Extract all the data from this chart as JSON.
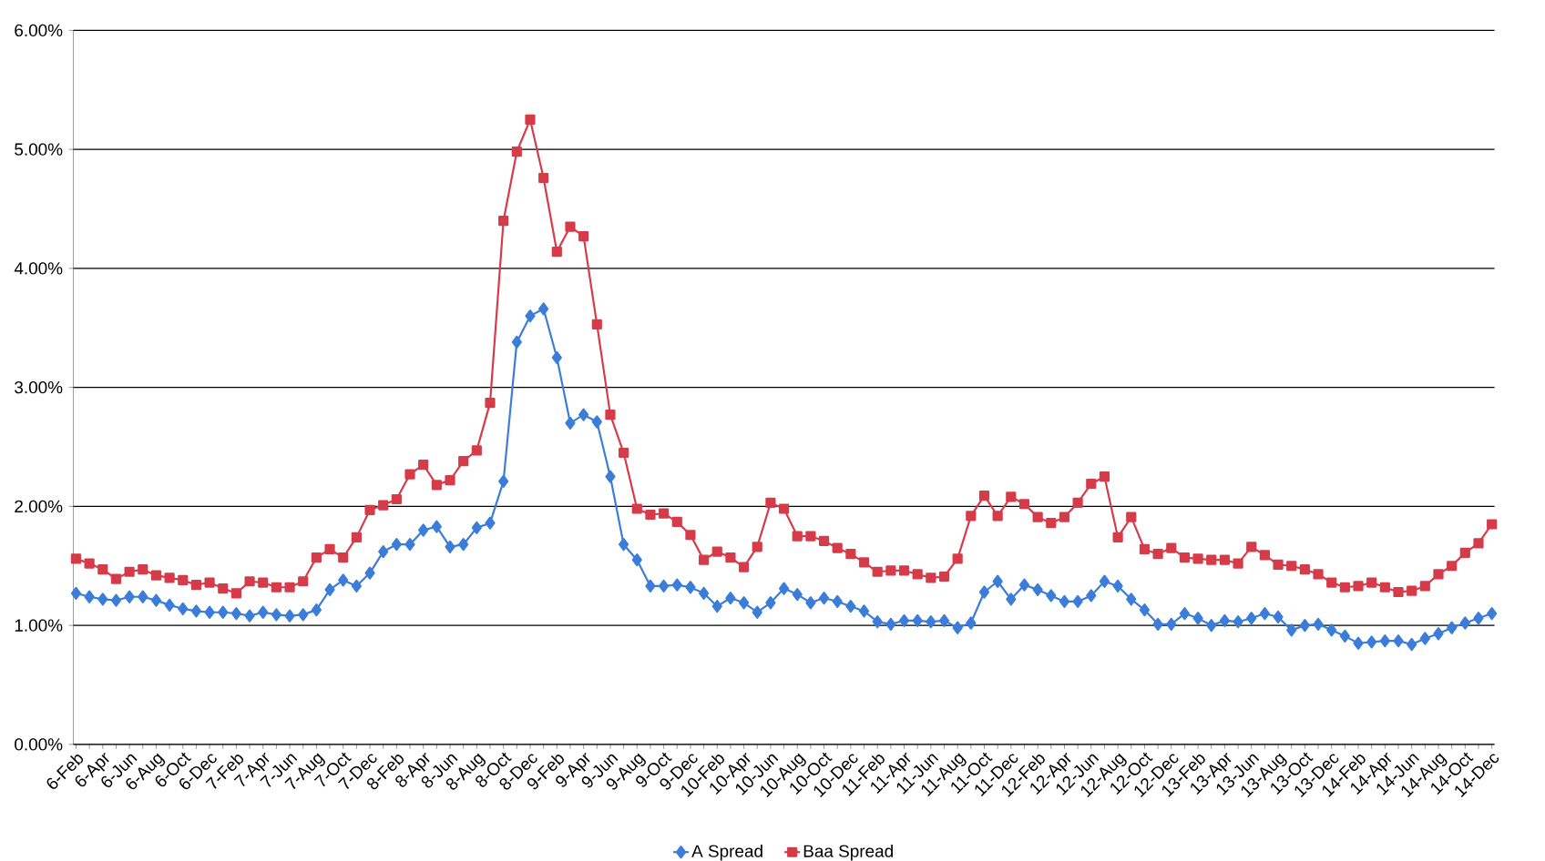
{
  "chart_data": {
    "type": "line",
    "categories": [
      "6-Feb",
      null,
      "6-Apr",
      null,
      "6-Jun",
      null,
      "6-Aug",
      null,
      "6-Oct",
      null,
      "6-Dec",
      null,
      "7-Feb",
      null,
      "7-Apr",
      null,
      "7-Jun",
      null,
      "7-Aug",
      null,
      "7-Oct",
      null,
      "7-Dec",
      null,
      "8-Feb",
      null,
      "8-Apr",
      null,
      "8-Jun",
      null,
      "8-Aug",
      null,
      "8-Oct",
      null,
      "8-Dec",
      null,
      "9-Feb",
      null,
      "9-Apr",
      null,
      "9-Jun",
      null,
      "9-Aug",
      null,
      "9-Oct",
      null,
      "9-Dec",
      null,
      "10-Feb",
      null,
      "10-Apr",
      null,
      "10-Jun",
      null,
      "10-Aug",
      null,
      "10-Oct",
      null,
      "10-Dec",
      null,
      "11-Feb",
      null,
      "11-Apr",
      null,
      "11-Jun",
      null,
      "11-Aug",
      null,
      "11-Oct",
      null,
      "11-Dec",
      null,
      "12-Feb",
      null,
      "12-Apr",
      null,
      "12-Jun",
      null,
      "12-Aug",
      null,
      "12-Oct",
      null,
      "12-Dec",
      null,
      "13-Feb",
      null,
      "13-Apr",
      null,
      "13-Jun",
      null,
      "13-Aug",
      null,
      "13-Oct",
      null,
      "13-Dec",
      null,
      "14-Feb",
      null,
      "14-Apr",
      null,
      "14-Jun",
      null,
      "14-Aug",
      null,
      "14-Oct",
      null,
      "14-Dec"
    ],
    "series": [
      {
        "name": "A Spread",
        "color": "#3b7dd8",
        "marker": "diamond",
        "values": [
          1.27,
          1.24,
          1.22,
          1.21,
          1.24,
          1.24,
          1.21,
          1.17,
          1.14,
          1.12,
          1.11,
          1.11,
          1.1,
          1.08,
          1.11,
          1.09,
          1.08,
          1.09,
          1.13,
          1.3,
          1.38,
          1.33,
          1.44,
          1.62,
          1.68,
          1.68,
          1.8,
          1.83,
          1.66,
          1.68,
          1.82,
          1.86,
          2.21,
          3.38,
          3.6,
          3.66,
          3.25,
          2.7,
          2.77,
          2.71,
          2.25,
          1.68,
          1.55,
          1.33,
          1.33,
          1.34,
          1.32,
          1.27,
          1.16,
          1.23,
          1.19,
          1.11,
          1.19,
          1.31,
          1.26,
          1.19,
          1.23,
          1.2,
          1.16,
          1.12,
          1.03,
          1.01,
          1.04,
          1.04,
          1.03,
          1.04,
          0.98,
          1.02,
          1.28,
          1.37,
          1.22,
          1.34,
          1.3,
          1.25,
          1.2,
          1.2,
          1.25,
          1.37,
          1.33,
          1.22,
          1.13,
          1.01,
          1.01,
          1.1,
          1.06,
          1.0,
          1.04,
          1.03,
          1.06,
          1.1,
          1.07,
          0.96,
          1.0,
          1.01,
          0.96,
          0.91,
          0.85,
          0.86,
          0.87,
          0.87,
          0.84,
          0.89,
          0.93,
          0.98,
          1.02,
          1.06,
          1.1
        ]
      },
      {
        "name": "Baa Spread",
        "color": "#d63b4a",
        "marker": "square",
        "values": [
          1.56,
          1.52,
          1.47,
          1.39,
          1.45,
          1.47,
          1.42,
          1.4,
          1.38,
          1.34,
          1.36,
          1.31,
          1.27,
          1.37,
          1.36,
          1.32,
          1.32,
          1.37,
          1.57,
          1.64,
          1.57,
          1.74,
          1.97,
          2.01,
          2.06,
          2.27,
          2.35,
          2.18,
          2.22,
          2.38,
          2.47,
          2.87,
          4.4,
          4.98,
          5.25,
          4.76,
          4.14,
          4.35,
          4.27,
          3.53,
          2.77,
          2.45,
          1.98,
          1.93,
          1.94,
          1.87,
          1.76,
          1.55,
          1.62,
          1.57,
          1.49,
          1.66,
          2.03,
          1.98,
          1.75,
          1.75,
          1.71,
          1.65,
          1.6,
          1.53,
          1.45,
          1.46,
          1.46,
          1.43,
          1.4,
          1.41,
          1.56,
          1.92,
          2.09,
          1.92,
          2.08,
          2.02,
          1.91,
          1.86,
          1.91,
          2.03,
          2.19,
          2.25,
          1.74,
          1.91,
          1.64,
          1.6,
          1.65,
          1.57,
          1.56,
          1.55,
          1.55,
          1.52,
          1.66,
          1.59,
          1.51,
          1.5,
          1.47,
          1.43,
          1.36,
          1.32,
          1.33,
          1.36,
          1.32,
          1.28,
          1.29,
          1.33,
          1.43,
          1.5,
          1.61,
          1.69,
          1.85
        ]
      }
    ],
    "ylim": [
      0,
      6
    ],
    "yticks": [
      {
        "value": 0,
        "label": "0.00%"
      },
      {
        "value": 1,
        "label": "1.00%"
      },
      {
        "value": 2,
        "label": "2.00%"
      },
      {
        "value": 3,
        "label": "3.00%"
      },
      {
        "value": 4,
        "label": "4.00%"
      },
      {
        "value": 5,
        "label": "5.00%"
      },
      {
        "value": 6,
        "label": "6.00%"
      }
    ],
    "grid": "y",
    "legend": "bottom"
  }
}
